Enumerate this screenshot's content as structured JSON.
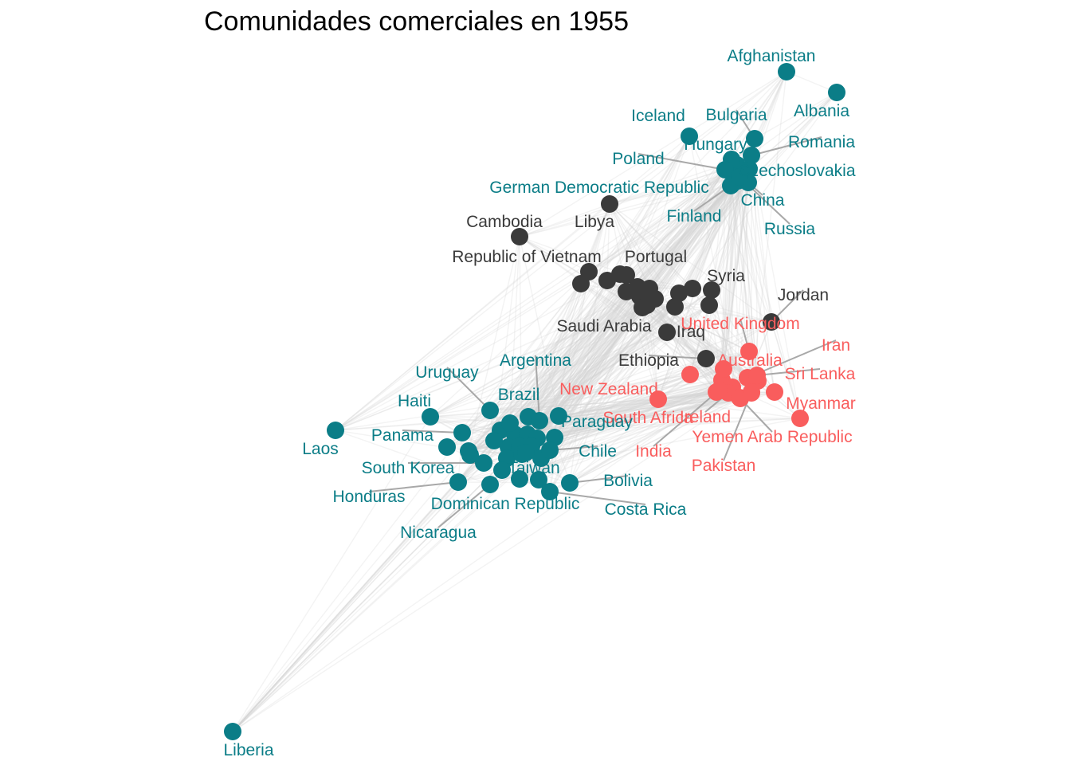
{
  "title": "Comunidades comerciales en 1955",
  "colors": {
    "community-teal": "#0b7d87",
    "community-dark": "#3a3a3a",
    "community-coral": "#f95d5d",
    "edge": "#d3d3d3",
    "leader": "#a8a8a8"
  },
  "communities": [
    "community-teal",
    "community-dark",
    "community-coral"
  ],
  "nodes": [
    {
      "id": "afghanistan",
      "label": "Afghanistan",
      "group": 0
    },
    {
      "id": "albania",
      "label": "Albania",
      "group": 0
    },
    {
      "id": "iceland",
      "label": "Iceland",
      "group": 0
    },
    {
      "id": "bulgaria",
      "label": "Bulgaria",
      "group": 0
    },
    {
      "id": "hungary",
      "label": "Hungary",
      "group": 0
    },
    {
      "id": "romania",
      "label": "Romania",
      "group": 0
    },
    {
      "id": "poland",
      "label": "Poland",
      "group": 0
    },
    {
      "id": "czechoslovakia",
      "label": "Czechoslovakia",
      "group": 0
    },
    {
      "id": "gdr",
      "label": "German Democratic Republic",
      "group": 0
    },
    {
      "id": "china",
      "label": "China",
      "group": 0
    },
    {
      "id": "finland",
      "label": "Finland",
      "group": 0
    },
    {
      "id": "russia",
      "label": "Russia",
      "group": 0
    },
    {
      "id": "libya",
      "label": "Libya",
      "group": 1
    },
    {
      "id": "cambodia",
      "label": "Cambodia",
      "group": 1
    },
    {
      "id": "vietnam",
      "label": "Republic of Vietnam",
      "group": 1
    },
    {
      "id": "portugal",
      "label": "Portugal",
      "group": 1
    },
    {
      "id": "syria",
      "label": "Syria",
      "group": 1
    },
    {
      "id": "jordan",
      "label": "Jordan",
      "group": 1
    },
    {
      "id": "saudi",
      "label": "Saudi Arabia",
      "group": 1
    },
    {
      "id": "iraq",
      "label": "Iraq",
      "group": 1
    },
    {
      "id": "ethiopia",
      "label": "Ethiopia",
      "group": 1
    },
    {
      "id": "uk",
      "label": "United Kingdom",
      "group": 2
    },
    {
      "id": "iran",
      "label": "Iran",
      "group": 2
    },
    {
      "id": "australia",
      "label": "Australia",
      "group": 2
    },
    {
      "id": "srilanka",
      "label": "Sri Lanka",
      "group": 2
    },
    {
      "id": "newzealand",
      "label": "New Zealand",
      "group": 2
    },
    {
      "id": "myanmar",
      "label": "Myanmar",
      "group": 2
    },
    {
      "id": "southafrica",
      "label": "South Africa",
      "group": 2
    },
    {
      "id": "ireland",
      "label": "Ireland",
      "group": 2
    },
    {
      "id": "yemen",
      "label": "Yemen Arab Republic",
      "group": 2
    },
    {
      "id": "india",
      "label": "India",
      "group": 2
    },
    {
      "id": "pakistan",
      "label": "Pakistan",
      "group": 2
    },
    {
      "id": "uruguay",
      "label": "Uruguay",
      "group": 0
    },
    {
      "id": "argentina",
      "label": "Argentina",
      "group": 0
    },
    {
      "id": "haiti",
      "label": "Haiti",
      "group": 0
    },
    {
      "id": "brazil",
      "label": "Brazil",
      "group": 0
    },
    {
      "id": "paraguay",
      "label": "Paraguay",
      "group": 0
    },
    {
      "id": "panama",
      "label": "Panama",
      "group": 0
    },
    {
      "id": "laos",
      "label": "Laos",
      "group": 0
    },
    {
      "id": "chile",
      "label": "Chile",
      "group": 0
    },
    {
      "id": "southkorea",
      "label": "South Korea",
      "group": 0
    },
    {
      "id": "taiwan",
      "label": "Taiwan",
      "group": 0
    },
    {
      "id": "bolivia",
      "label": "Bolivia",
      "group": 0
    },
    {
      "id": "honduras",
      "label": "Honduras",
      "group": 0
    },
    {
      "id": "dominican",
      "label": "Dominican Republic",
      "group": 0
    },
    {
      "id": "costarica",
      "label": "Costa Rica",
      "group": 0
    },
    {
      "id": "nicaragua",
      "label": "Nicaragua",
      "group": 0
    },
    {
      "id": "liberia",
      "label": "Liberia",
      "group": 0
    }
  ]
}
